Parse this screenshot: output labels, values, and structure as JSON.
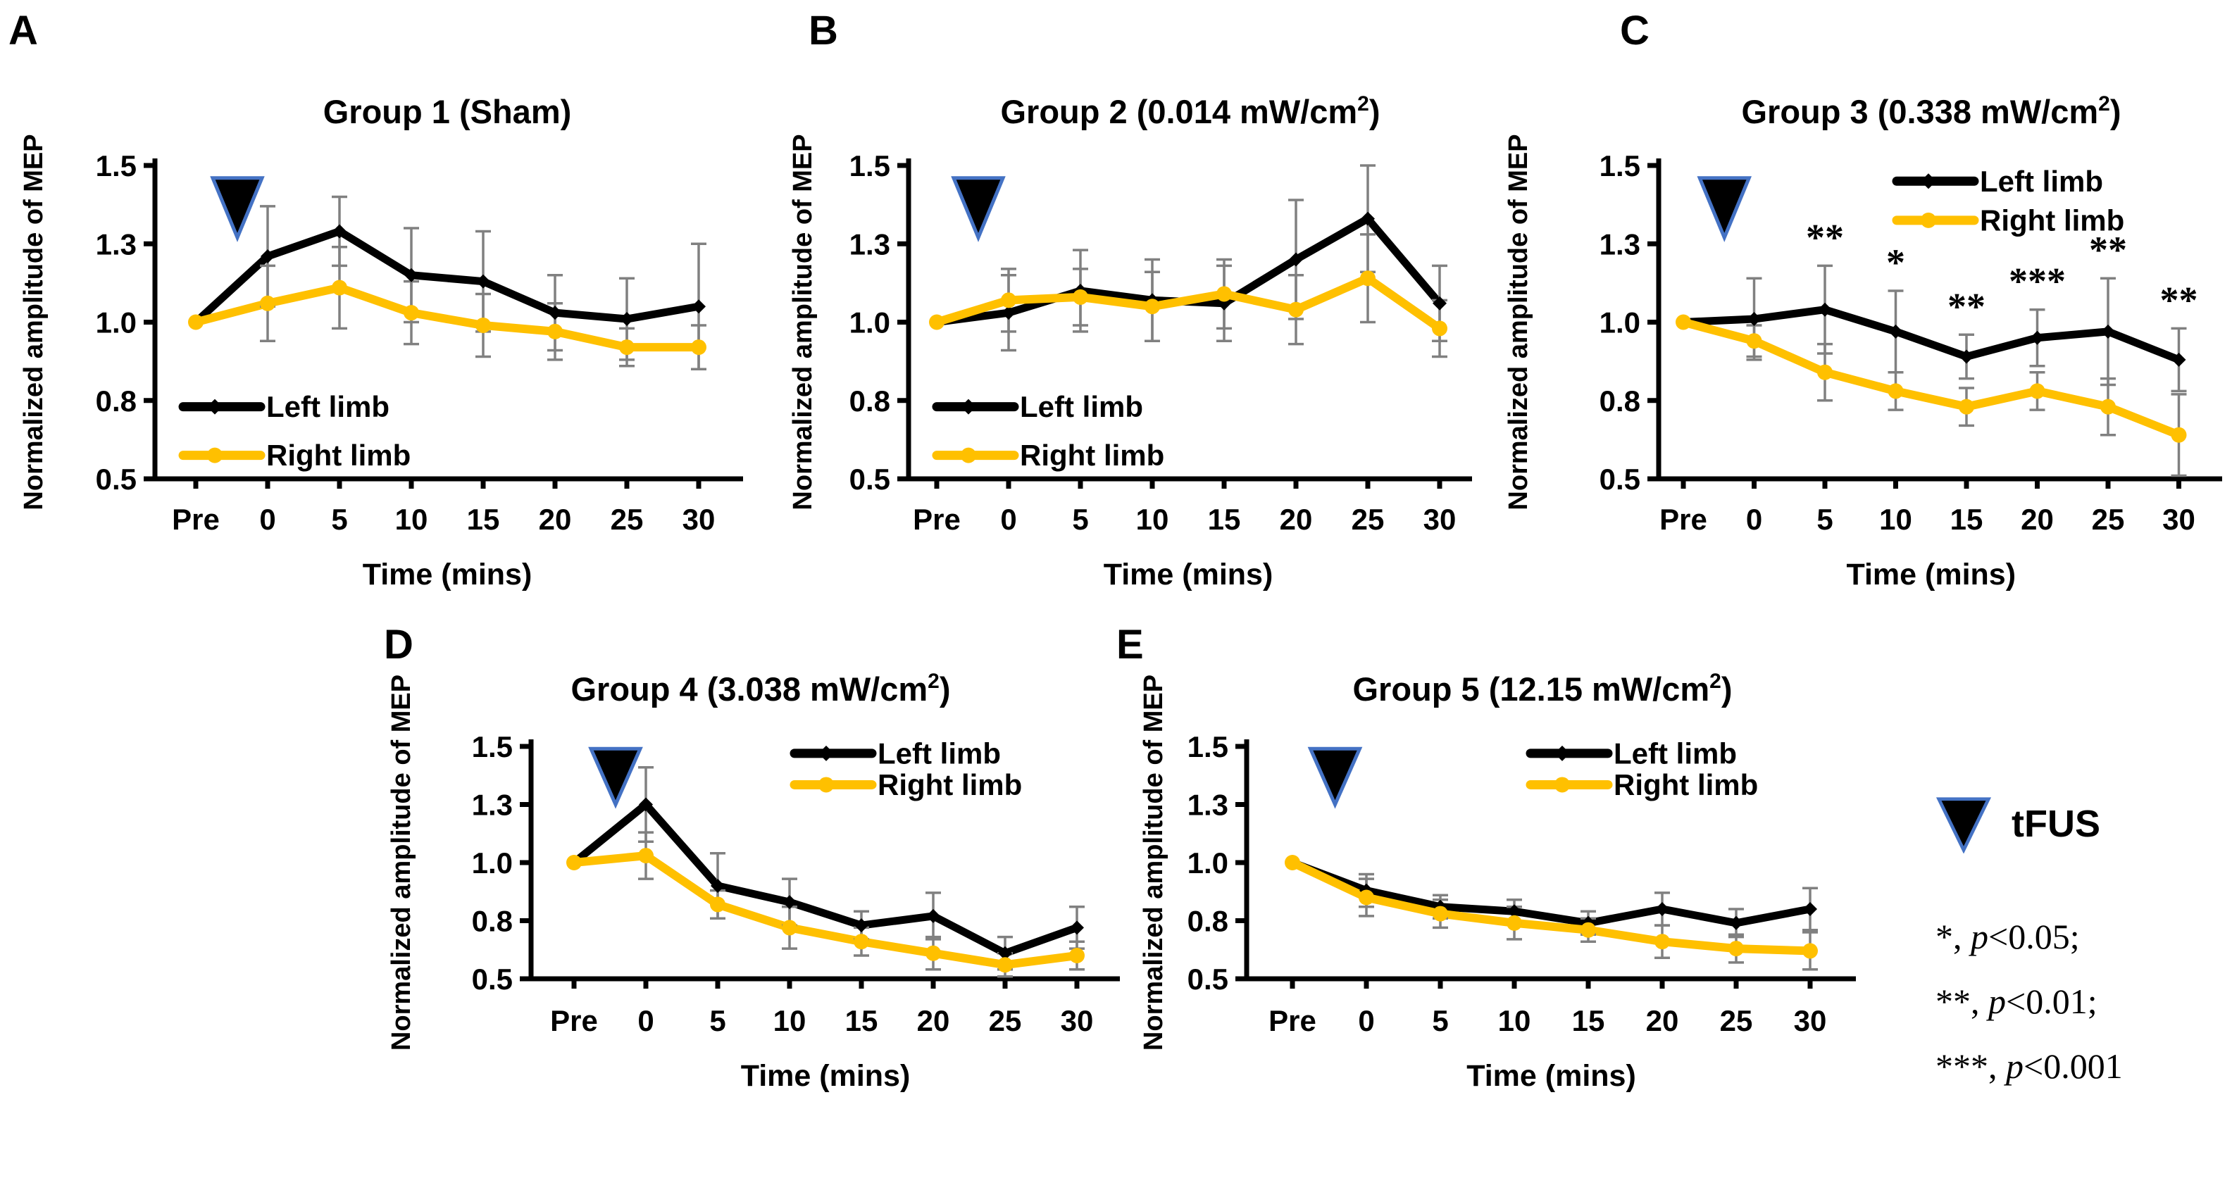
{
  "chart_data": [
    {
      "type": "line",
      "panel_letter": "A",
      "title": "Group 1 (Sham)",
      "title_parts": [
        {
          "text": "Group 1 (Sham)",
          "sup": false
        }
      ],
      "x_categories": [
        "Pre",
        "0",
        "5",
        "10",
        "15",
        "20",
        "25",
        "30"
      ],
      "xlabel": "Time (mins)",
      "ylabel": "Normalized amplitude of MEP",
      "ylim": [
        0.5,
        1.5
      ],
      "y_ticks": [
        {
          "pos": 0.5,
          "label": "0.5"
        },
        {
          "pos": 0.75,
          "label": "0.8"
        },
        {
          "pos": 1.0,
          "label": "1.0"
        },
        {
          "pos": 1.25,
          "label": "1.3"
        },
        {
          "pos": 1.5,
          "label": "1.5"
        }
      ],
      "grid": false,
      "legend_position": "bottom-left",
      "tfus_marker_between": [
        "Pre",
        "0"
      ],
      "series": [
        {
          "name": "Left limb",
          "color": "#000000",
          "marker": "diamond",
          "values": [
            1.0,
            1.21,
            1.29,
            1.15,
            1.13,
            1.03,
            1.01,
            1.05
          ],
          "errors": [
            0.0,
            0.16,
            0.11,
            0.15,
            0.16,
            0.12,
            0.13,
            0.2
          ]
        },
        {
          "name": "Right limb",
          "color": "#FFC000",
          "marker": "circle",
          "values": [
            1.0,
            1.06,
            1.11,
            1.03,
            0.99,
            0.97,
            0.92,
            0.92
          ],
          "errors": [
            0.0,
            0.12,
            0.13,
            0.1,
            0.1,
            0.09,
            0.06,
            0.07
          ]
        }
      ],
      "significance": []
    },
    {
      "type": "line",
      "panel_letter": "B",
      "title": "Group 2 (0.014 mW/cm²)",
      "title_parts": [
        {
          "text": "Group 2 (0.014 mW/cm",
          "sup": false
        },
        {
          "text": "2",
          "sup": true
        },
        {
          "text": ")",
          "sup": false
        }
      ],
      "x_categories": [
        "Pre",
        "0",
        "5",
        "10",
        "15",
        "20",
        "25",
        "30"
      ],
      "xlabel": "Time (mins)",
      "ylabel": "Normalized amplitude of MEP",
      "ylim": [
        0.5,
        1.5
      ],
      "y_ticks": [
        {
          "pos": 0.5,
          "label": "0.5"
        },
        {
          "pos": 0.75,
          "label": "0.8"
        },
        {
          "pos": 1.0,
          "label": "1.0"
        },
        {
          "pos": 1.25,
          "label": "1.3"
        },
        {
          "pos": 1.5,
          "label": "1.5"
        }
      ],
      "grid": false,
      "legend_position": "bottom-left",
      "tfus_marker_between": [
        "Pre",
        "0"
      ],
      "series": [
        {
          "name": "Left limb",
          "color": "#000000",
          "marker": "diamond",
          "values": [
            1.0,
            1.03,
            1.1,
            1.07,
            1.06,
            1.2,
            1.33,
            1.06
          ],
          "errors": [
            0.0,
            0.12,
            0.13,
            0.13,
            0.12,
            0.19,
            0.17,
            0.12
          ]
        },
        {
          "name": "Right limb",
          "color": "#FFC000",
          "marker": "circle",
          "values": [
            1.0,
            1.07,
            1.08,
            1.05,
            1.09,
            1.04,
            1.14,
            0.98
          ],
          "errors": [
            0.0,
            0.1,
            0.09,
            0.11,
            0.11,
            0.11,
            0.14,
            0.09
          ]
        }
      ],
      "significance": []
    },
    {
      "type": "line",
      "panel_letter": "C",
      "title": "Group 3 (0.338 mW/cm²)",
      "title_parts": [
        {
          "text": "Group 3 (0.338 mW/cm",
          "sup": false
        },
        {
          "text": "2",
          "sup": true
        },
        {
          "text": ")",
          "sup": false
        }
      ],
      "x_categories": [
        "Pre",
        "0",
        "5",
        "10",
        "15",
        "20",
        "25",
        "30"
      ],
      "xlabel": "Time (mins)",
      "ylabel": "Normalized amplitude of MEP",
      "ylim": [
        0.5,
        1.5
      ],
      "y_ticks": [
        {
          "pos": 0.5,
          "label": "0.5"
        },
        {
          "pos": 0.75,
          "label": "0.8"
        },
        {
          "pos": 1.0,
          "label": "1.0"
        },
        {
          "pos": 1.25,
          "label": "1.3"
        },
        {
          "pos": 1.5,
          "label": "1.5"
        }
      ],
      "grid": false,
      "legend_position": "top-right",
      "tfus_marker_between": [
        "Pre",
        "0"
      ],
      "series": [
        {
          "name": "Left limb",
          "color": "#000000",
          "marker": "diamond",
          "values": [
            1.0,
            1.01,
            1.04,
            0.97,
            0.89,
            0.95,
            0.97,
            0.88
          ],
          "errors": [
            0.0,
            0.13,
            0.14,
            0.13,
            0.07,
            0.09,
            0.17,
            0.1
          ]
        },
        {
          "name": "Right limb",
          "color": "#FFC000",
          "marker": "circle",
          "values": [
            1.0,
            0.94,
            0.84,
            0.78,
            0.73,
            0.78,
            0.73,
            0.64
          ],
          "errors": [
            0.0,
            0.05,
            0.09,
            0.06,
            0.06,
            0.06,
            0.09,
            0.13
          ]
        }
      ],
      "significance": [
        {
          "x": "5",
          "stars": "**"
        },
        {
          "x": "10",
          "stars": "*"
        },
        {
          "x": "15",
          "stars": "**"
        },
        {
          "x": "20",
          "stars": "***"
        },
        {
          "x": "25",
          "stars": "**"
        },
        {
          "x": "30",
          "stars": "**"
        }
      ]
    },
    {
      "type": "line",
      "panel_letter": "D",
      "title": "Group 4 (3.038 mW/cm²)",
      "title_parts": [
        {
          "text": "Group 4 (3.038 mW/cm",
          "sup": false
        },
        {
          "text": "2",
          "sup": true
        },
        {
          "text": ")",
          "sup": false
        }
      ],
      "x_categories": [
        "Pre",
        "0",
        "5",
        "10",
        "15",
        "20",
        "25",
        "30"
      ],
      "xlabel": "Time (mins)",
      "ylabel": "Normalized amplitude of MEP",
      "ylim": [
        0.5,
        1.5
      ],
      "y_ticks": [
        {
          "pos": 0.5,
          "label": "0.5"
        },
        {
          "pos": 0.75,
          "label": "0.8"
        },
        {
          "pos": 1.0,
          "label": "1.0"
        },
        {
          "pos": 1.25,
          "label": "1.3"
        },
        {
          "pos": 1.5,
          "label": "1.5"
        }
      ],
      "grid": false,
      "legend_position": "top-right",
      "tfus_marker_between": [
        "Pre",
        "0"
      ],
      "series": [
        {
          "name": "Left limb",
          "color": "#000000",
          "marker": "diamond",
          "values": [
            1.0,
            1.25,
            0.9,
            0.83,
            0.73,
            0.77,
            0.61,
            0.72
          ],
          "errors": [
            0.0,
            0.16,
            0.14,
            0.1,
            0.06,
            0.1,
            0.07,
            0.09
          ]
        },
        {
          "name": "Right limb",
          "color": "#FFC000",
          "marker": "circle",
          "values": [
            1.0,
            1.03,
            0.82,
            0.72,
            0.66,
            0.61,
            0.56,
            0.6
          ],
          "errors": [
            0.0,
            0.1,
            0.06,
            0.09,
            0.06,
            0.07,
            0.05,
            0.06
          ]
        }
      ],
      "significance": []
    },
    {
      "type": "line",
      "panel_letter": "E",
      "title": "Group 5 (12.15 mW/cm²)",
      "title_parts": [
        {
          "text": "Group 5 (12.15 mW/cm",
          "sup": false
        },
        {
          "text": "2",
          "sup": true
        },
        {
          "text": ")",
          "sup": false
        }
      ],
      "x_categories": [
        "Pre",
        "0",
        "5",
        "10",
        "15",
        "20",
        "25",
        "30"
      ],
      "xlabel": "Time (mins)",
      "ylabel": "Normalized amplitude of MEP",
      "ylim": [
        0.5,
        1.5
      ],
      "y_ticks": [
        {
          "pos": 0.5,
          "label": "0.5"
        },
        {
          "pos": 0.75,
          "label": "0.8"
        },
        {
          "pos": 1.0,
          "label": "1.0"
        },
        {
          "pos": 1.25,
          "label": "1.3"
        },
        {
          "pos": 1.5,
          "label": "1.5"
        }
      ],
      "grid": false,
      "legend_position": "top-right",
      "tfus_marker_between": [
        "Pre",
        "0"
      ],
      "series": [
        {
          "name": "Left limb",
          "color": "#000000",
          "marker": "diamond",
          "values": [
            1.0,
            0.88,
            0.81,
            0.79,
            0.74,
            0.8,
            0.74,
            0.8
          ],
          "errors": [
            0.0,
            0.07,
            0.05,
            0.05,
            0.05,
            0.07,
            0.06,
            0.09
          ]
        },
        {
          "name": "Right limb",
          "color": "#FFC000",
          "marker": "circle",
          "values": [
            1.0,
            0.85,
            0.78,
            0.74,
            0.71,
            0.66,
            0.63,
            0.62
          ],
          "errors": [
            0.0,
            0.08,
            0.06,
            0.07,
            0.05,
            0.07,
            0.06,
            0.08
          ]
        }
      ],
      "significance": []
    }
  ],
  "side_legend": {
    "tfus_label": "tFUS",
    "triangle_fill": "#000000",
    "triangle_border": "#4472C4",
    "items": [
      {
        "stars": "*",
        "comma": ", ",
        "p_symbol": "p",
        "threshold": "<0.05;"
      },
      {
        "stars": "**",
        "comma": ", ",
        "p_symbol": "p",
        "threshold": "<0.01;"
      },
      {
        "stars": "***",
        "comma": ", ",
        "p_symbol": "p",
        "threshold": "<0.001"
      }
    ]
  },
  "colors": {
    "left_limb": "#000000",
    "right_limb": "#FFC000",
    "error_bar": "#808080"
  }
}
